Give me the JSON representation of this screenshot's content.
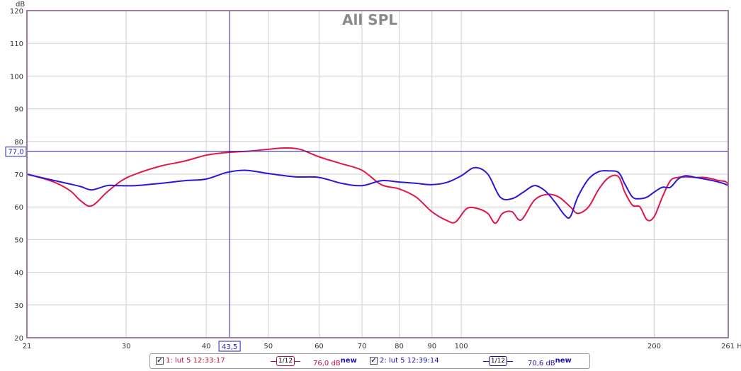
{
  "chart_data": {
    "type": "line",
    "title": "All SPL",
    "ylabel": "dB",
    "xlabel": "Hz",
    "xscale": "log",
    "xlim": [
      21,
      261
    ],
    "ylim": [
      20,
      120
    ],
    "x_ticks": [
      21,
      30,
      40,
      50,
      60,
      70,
      80,
      90,
      100,
      200,
      261
    ],
    "x_tick_labels": [
      "21",
      "30",
      "40",
      "50",
      "60",
      "70",
      "80",
      "90",
      "100",
      "200",
      "261 Hz"
    ],
    "y_ticks": [
      20,
      30,
      40,
      50,
      60,
      70,
      80,
      90,
      100,
      110,
      120
    ],
    "cursor": {
      "x": 43.5,
      "y": 77.0,
      "x_label": "43,5",
      "y_label": "77,0"
    },
    "series": [
      {
        "name": "1: lut 5 12:33:17",
        "color": "#e0174a",
        "x": [
          21,
          23,
          24.5,
          25.5,
          26.5,
          28,
          29.5,
          31,
          34,
          37,
          40,
          43,
          47,
          50,
          53,
          56,
          60,
          65,
          70,
          75,
          80,
          85,
          90,
          95,
          98,
          102,
          106,
          110,
          113,
          116,
          120,
          124,
          130,
          136,
          142,
          148,
          152,
          158,
          164,
          170,
          176,
          180,
          185,
          190,
          195,
          200,
          206,
          212,
          218,
          224,
          232,
          240,
          247,
          253,
          258,
          261
        ],
        "y": [
          70,
          67.8,
          65,
          61.8,
          60.3,
          64.5,
          68,
          70,
          72.5,
          74,
          75.8,
          76.6,
          77.1,
          77.6,
          78,
          77.6,
          75.3,
          73.2,
          71.2,
          66.8,
          65.5,
          63,
          58.5,
          55.8,
          55.4,
          59.5,
          59.5,
          58,
          55,
          58,
          58.5,
          56,
          62,
          63.8,
          63,
          60,
          58,
          60,
          65.5,
          69,
          69.2,
          64.5,
          60.5,
          60,
          56,
          57,
          63,
          68,
          69,
          69.2,
          69,
          69,
          68.5,
          68,
          67.8,
          67
        ]
      },
      {
        "name": "2: lut 5 12:39:14",
        "color": "#2a16d6",
        "x": [
          21,
          23,
          24.5,
          25.5,
          26.5,
          28,
          29,
          31,
          34,
          37,
          40,
          43,
          46,
          50,
          55,
          60,
          65,
          70,
          75,
          80,
          85,
          90,
          95,
          100,
          105,
          110,
          115,
          120,
          125,
          130,
          135,
          140,
          145,
          148,
          152,
          158,
          164,
          170,
          176,
          180,
          185,
          190,
          195,
          200,
          206,
          212,
          218,
          224,
          232,
          240,
          247,
          253,
          258,
          261
        ],
        "y": [
          70,
          68.2,
          67,
          66.2,
          65.2,
          66.5,
          66.5,
          66.5,
          67.2,
          68,
          68.5,
          70.5,
          71.2,
          70.2,
          69.2,
          69,
          67.2,
          66.5,
          68,
          67.6,
          67.2,
          66.8,
          67.5,
          69.5,
          72,
          70,
          63,
          62.5,
          64.5,
          66.5,
          65,
          61.5,
          57.5,
          57,
          63,
          68.5,
          70.8,
          71,
          70.5,
          67,
          63,
          62.5,
          63,
          64.5,
          66,
          66,
          68.5,
          69.5,
          69,
          68.5,
          68,
          67.5,
          67,
          66.5
        ]
      }
    ],
    "legend": {
      "placement": "bottom",
      "items": [
        {
          "label": "1: lut 5 12:33:17",
          "smoothing": "1/12",
          "level": "76,0 dB",
          "tag": "new",
          "color": "#c0103a"
        },
        {
          "label": "2: lut 5 12:39:14",
          "smoothing": "1/12",
          "level": "70,6 dB",
          "tag": "new",
          "color": "#1a10b0"
        }
      ]
    }
  }
}
